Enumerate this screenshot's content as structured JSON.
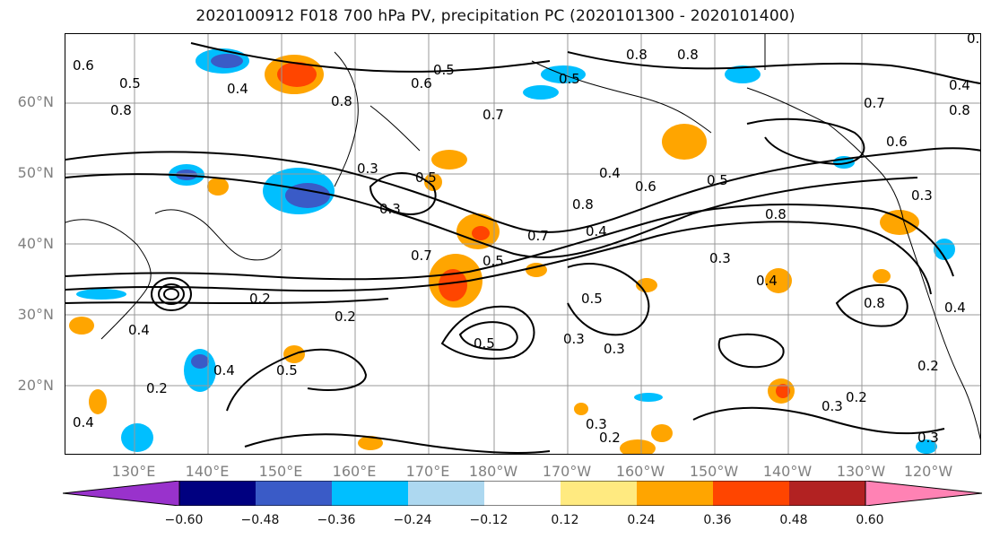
{
  "title": "2020100912 F018 700 hPa PV, precipitation PC (2020101300 - 2020101400)",
  "lat_labels": [
    "60°N",
    "50°N",
    "40°N",
    "30°N",
    "20°N"
  ],
  "lon_labels": [
    "130°E",
    "140°E",
    "150°E",
    "160°E",
    "170°E",
    "180°W",
    "170°W",
    "160°W",
    "150°W",
    "140°W",
    "130°W",
    "120°W"
  ],
  "colorbar": {
    "tick_labels": [
      "−0.60",
      "−0.48",
      "−0.36",
      "−0.24",
      "−0.12",
      "0.12",
      "0.24",
      "0.36",
      "0.48",
      "0.60"
    ],
    "colors": [
      "#9932cc",
      "#000080",
      "#3a5bc7",
      "#00bfff",
      "#add8f0",
      "#ffffff",
      "#ffea80",
      "#ffa500",
      "#ff4500",
      "#b22222",
      "#ff82b4"
    ]
  },
  "contour_labels": [
    "0.6",
    "0.5",
    "0.4",
    "0.8",
    "0.8",
    "0.7",
    "0.6",
    "0.5",
    "0.8",
    "0.5",
    "0.4",
    "0.6",
    "0.3",
    "0.5",
    "0.4",
    "0.6",
    "0.5",
    "0.8",
    "0.8",
    "0.7",
    "0.7",
    "0.6",
    "0.4",
    "0.5",
    "0.3",
    "0.2",
    "0.4",
    "0.4",
    "0.5",
    "0.3",
    "0.5",
    "0.3",
    "0.5",
    "0.2",
    "0.4",
    "0.3",
    "0.2",
    "0.3",
    "0.3",
    "0.2",
    "0.2",
    "0.3",
    "0.4",
    "0.8",
    "0.4",
    "0.2",
    "0.8",
    "0.7",
    "0.8",
    "0.3"
  ]
}
